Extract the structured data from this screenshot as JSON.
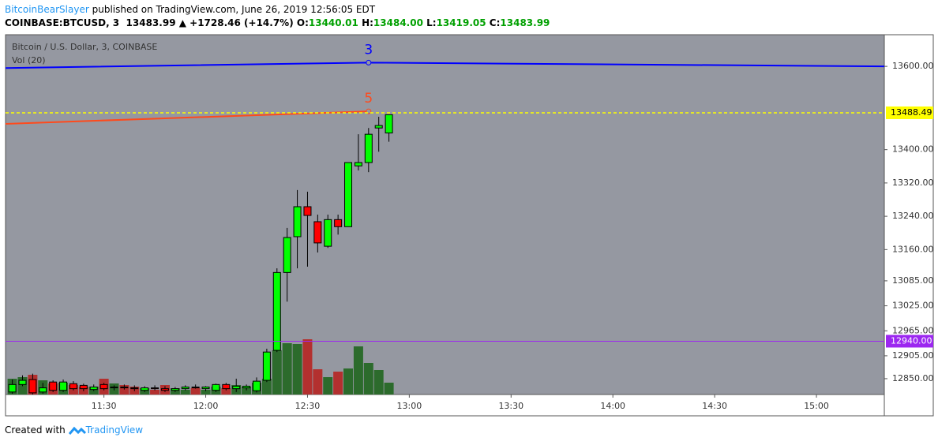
{
  "header": {
    "author": "BitcoinBearSlayer",
    "published": "published on TradingView.com, June 26, 2019 12:56:05 EDT",
    "symbol": "COINBASE:BTCUSD, 3",
    "last": "13483.99",
    "change": "▲ +1728.46 (+14.7%)",
    "ohlc": [
      {
        "label": "O:",
        "value": "13440.01"
      },
      {
        "label": "H:",
        "value": "13484.00"
      },
      {
        "label": "L:",
        "value": "13419.05"
      },
      {
        "label": "C:",
        "value": "13483.99"
      }
    ]
  },
  "footer": {
    "text": "Created with",
    "brand": "TradingView"
  },
  "chart_data": {
    "type": "candlestick",
    "title": "Bitcoin / U.S. Dollar, 3, COINBASE",
    "subtitle": "Vol (20)",
    "x": [
      "11:03",
      "11:06",
      "11:09",
      "11:12",
      "11:15",
      "11:18",
      "11:21",
      "11:24",
      "11:27",
      "11:30",
      "11:33",
      "11:36",
      "11:39",
      "11:42",
      "11:45",
      "11:48",
      "11:51",
      "11:54",
      "11:57",
      "12:00",
      "12:03",
      "12:06",
      "12:09",
      "12:12",
      "12:15",
      "12:18",
      "12:21",
      "12:24",
      "12:27",
      "12:30",
      "12:33",
      "12:36",
      "12:39",
      "12:42",
      "12:45",
      "12:48",
      "12:51",
      "12:54"
    ],
    "open": [
      12818,
      12836,
      12848,
      12818,
      12842,
      12822,
      12838,
      12834,
      12824,
      12836,
      12828,
      12830,
      12828,
      12822,
      12828,
      12826,
      12822,
      12826,
      12830,
      12826,
      12822,
      12836,
      12826,
      12828,
      12821,
      12846,
      12918,
      13105,
      13191,
      13263,
      13227,
      13168,
      13232,
      13215,
      13361,
      13369,
      13452,
      13440.01
    ],
    "high": [
      12848,
      12858,
      12862,
      12840,
      12846,
      12848,
      12844,
      12838,
      12836,
      12840,
      12834,
      12836,
      12834,
      12832,
      12834,
      12832,
      12830,
      12834,
      12836,
      12832,
      12838,
      12840,
      12850,
      12836,
      12853,
      12922,
      13115,
      13212,
      13303,
      13299,
      13244,
      13244,
      13244,
      13369,
      13437,
      13452,
      13479,
      13484.0
    ],
    "low": [
      12814,
      12832,
      12812,
      12814,
      12818,
      12818,
      12822,
      12820,
      12820,
      12822,
      12822,
      12824,
      12820,
      12818,
      12822,
      12818,
      12818,
      12822,
      12826,
      12820,
      12818,
      12822,
      12818,
      12822,
      12817,
      12842,
      12914,
      13035,
      13115,
      13119,
      13153,
      13164,
      13196,
      13215,
      13350,
      13346,
      13395,
      13419.05
    ],
    "close": [
      12836,
      12846,
      12816,
      12828,
      12822,
      12842,
      12826,
      12826,
      12830,
      12826,
      12830,
      12828,
      12826,
      12828,
      12826,
      12822,
      12826,
      12830,
      12828,
      12830,
      12836,
      12826,
      12832,
      12832,
      12844,
      12914,
      13105,
      13189,
      13263,
      13242,
      13176,
      13232,
      13215,
      13369,
      13369,
      13437,
      13458,
      13483.99
    ],
    "volume": [
      20,
      22,
      25,
      18,
      14,
      15,
      12,
      10,
      10,
      20,
      14,
      12,
      10,
      8,
      6,
      12,
      8,
      6,
      8,
      6,
      10,
      8,
      12,
      10,
      15,
      20,
      56,
      65,
      64,
      70,
      32,
      22,
      29,
      33,
      61,
      40,
      31,
      15
    ],
    "colors": {
      "up": "#00ff00",
      "down": "#ff0000",
      "volume_up": "#2c6b2c",
      "volume_down": "#b3302f",
      "wick": "#000000"
    },
    "ylim": [
      12812,
      13676
    ],
    "yticks": [
      {
        "value": 12850,
        "label": "12850.00"
      },
      {
        "value": 12905,
        "label": "12905.00"
      },
      {
        "value": 12965,
        "label": "12965.00"
      },
      {
        "value": 13025,
        "label": "13025.00"
      },
      {
        "value": 13085,
        "label": "13085.00"
      },
      {
        "value": 13160,
        "label": "13160.00"
      },
      {
        "value": 13240,
        "label": "13240.00"
      },
      {
        "value": 13320,
        "label": "13320.00"
      },
      {
        "value": 13400,
        "label": "13400.00"
      },
      {
        "value": 13600,
        "label": "13600.00"
      }
    ],
    "xlim": [
      "11:01",
      "15:20"
    ],
    "xticks": [
      "11:30",
      "12:00",
      "12:30",
      "13:00",
      "13:30",
      "14:00",
      "14:30",
      "15:00"
    ],
    "price_lines": [
      {
        "value": 13488.49,
        "label": "13488.49",
        "color": "#ffff00",
        "dashed": true,
        "text_color": "#000000"
      },
      {
        "value": 12940,
        "label": "12940.00",
        "color": "#9c27f0",
        "dashed": false,
        "text_color": "#ffffff"
      }
    ],
    "trend_lines": [
      {
        "label": "3",
        "color": "#0000ff",
        "x": [
          "11:01",
          "12:48",
          "15:20"
        ],
        "y": [
          13596,
          13609,
          13600
        ]
      },
      {
        "label": "5",
        "color": "#ff4a1c",
        "x": [
          "11:01",
          "12:48"
        ],
        "y": [
          13462,
          13492
        ]
      }
    ]
  }
}
